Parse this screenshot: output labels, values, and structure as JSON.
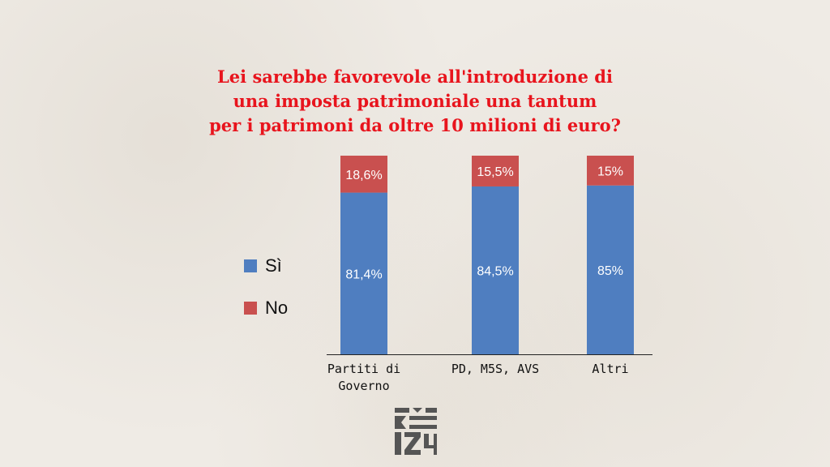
{
  "chart_data": {
    "type": "bar",
    "stacked": true,
    "title_lines": [
      "Lei sarebbe favorevole all'introduzione di",
      "una imposta patrimoniale una tantum",
      "per i patrimoni da oltre 10 milioni di euro?"
    ],
    "categories": [
      [
        "Partiti di",
        "Governo"
      ],
      [
        "PD, M5S, AVS"
      ],
      [
        "Altri"
      ]
    ],
    "series": [
      {
        "name": "Sì",
        "color": "#4f7ec0",
        "values": [
          81.4,
          84.5,
          85
        ],
        "labels": [
          "81,4%",
          "84,5%",
          "85%"
        ]
      },
      {
        "name": "No",
        "color": "#c9504f",
        "values": [
          18.6,
          15.5,
          15
        ],
        "labels": [
          "18,6%",
          "15,5%",
          "15%"
        ]
      }
    ],
    "ylim": [
      0,
      100
    ],
    "legend_position": "left",
    "grid": false
  }
}
